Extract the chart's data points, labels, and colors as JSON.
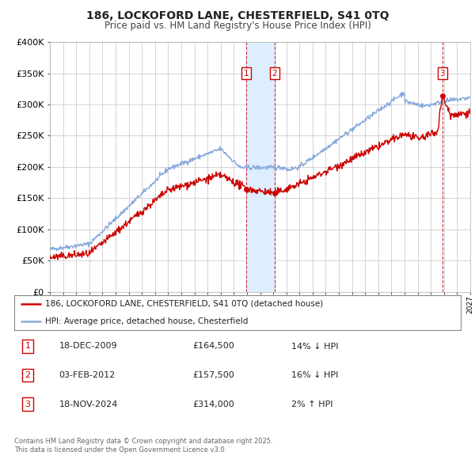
{
  "title": "186, LOCKOFORD LANE, CHESTERFIELD, S41 0TQ",
  "subtitle": "Price paid vs. HM Land Registry's House Price Index (HPI)",
  "ylim": [
    0,
    400000
  ],
  "yticks": [
    0,
    50000,
    100000,
    150000,
    200000,
    250000,
    300000,
    350000,
    400000
  ],
  "ytick_labels": [
    "£0",
    "£50K",
    "£100K",
    "£150K",
    "£200K",
    "£250K",
    "£300K",
    "£350K",
    "£400K"
  ],
  "xlim_start": 1995.0,
  "xlim_end": 2027.0,
  "line_red_color": "#cc0000",
  "line_blue_color": "#88aadd",
  "shade_color": "#ddeeff",
  "grid_color": "#cccccc",
  "bg_color": "#ffffff",
  "sale1_year": 2009.96,
  "sale1_price": 164500,
  "sale1_label": "1",
  "sale1_date": "18-DEC-2009",
  "sale1_pct": "14% ↓ HPI",
  "sale2_year": 2012.09,
  "sale2_price": 157500,
  "sale2_label": "2",
  "sale2_date": "03-FEB-2012",
  "sale2_pct": "16% ↓ HPI",
  "sale3_year": 2024.88,
  "sale3_price": 314000,
  "sale3_label": "3",
  "sale3_date": "18-NOV-2024",
  "sale3_pct": "2% ↑ HPI",
  "legend_line1": "186, LOCKOFORD LANE, CHESTERFIELD, S41 0TQ (detached house)",
  "legend_line2": "HPI: Average price, detached house, Chesterfield",
  "footer1": "Contains HM Land Registry data © Crown copyright and database right 2025.",
  "footer2": "This data is licensed under the Open Government Licence v3.0."
}
